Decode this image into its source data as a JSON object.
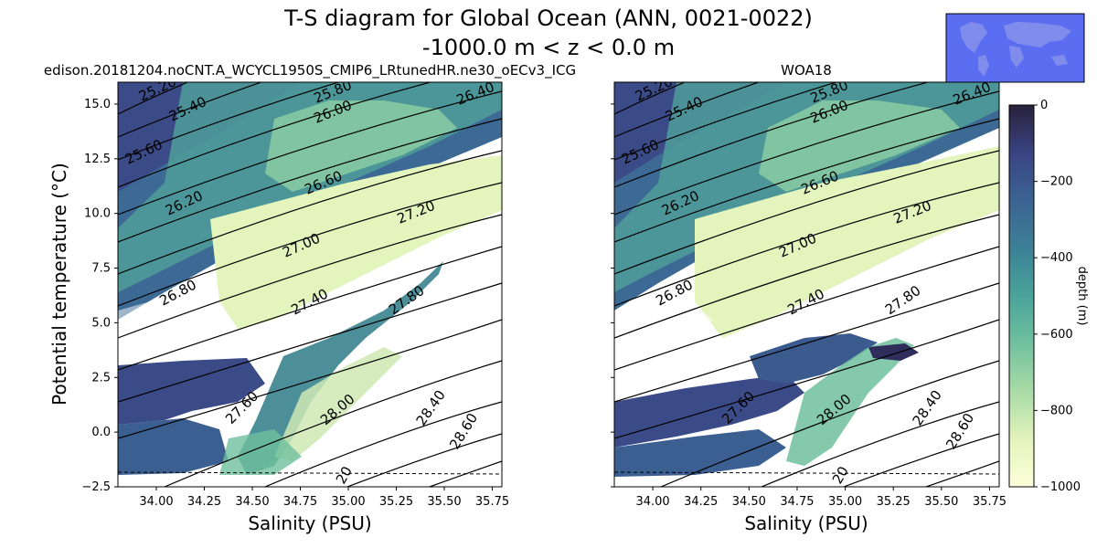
{
  "title_line1": "T-S diagram for Global Ocean (ANN, 0021-0022)",
  "title_line2": "-1000.0 m < z < 0.0 m",
  "colorbar": {
    "label": "depth (m)",
    "ticks": [
      "0",
      "−200",
      "−400",
      "−600",
      "−800",
      "−1000"
    ],
    "range": [
      -1000,
      0
    ],
    "colors": [
      "#fdfed9",
      "#cfe9b4",
      "#8fcfa2",
      "#58b09b",
      "#3d8c98",
      "#3a6893",
      "#3b4a87",
      "#2f2d5c",
      "#28213a"
    ]
  },
  "chart_data": [
    {
      "type": "scatter",
      "title": "edison.20181204.noCNT.A_WCYCL1950S_CMIP6_LRtunedHR.ne30_oECv3_ICG",
      "xlabel": "Salinity (PSU)",
      "ylabel": "Potential temperature (°C)",
      "xlim": [
        33.8,
        35.8
      ],
      "ylim": [
        -2.5,
        16.0
      ],
      "xticks": [
        "34.00",
        "34.25",
        "34.50",
        "34.75",
        "35.00",
        "35.25",
        "35.50",
        "35.75"
      ],
      "yticks": [
        "−2.5",
        "0.0",
        "2.5",
        "5.0",
        "7.5",
        "10.0",
        "12.5",
        "15.0"
      ],
      "density_contour_labels": [
        "25.20",
        "25.40",
        "25.60",
        "25.80",
        "26.00",
        "26.20",
        "26.40",
        "26.60",
        "26.80",
        "27.00",
        "27.20",
        "27.40",
        "27.60",
        "27.80",
        "28.00",
        "28.40",
        "28.60",
        "20"
      ],
      "freezing_line": "dashed"
    },
    {
      "type": "scatter",
      "title": "WOA18",
      "xlabel": "Salinity (PSU)",
      "ylabel": "",
      "xlim": [
        33.8,
        35.8
      ],
      "ylim": [
        -2.5,
        16.0
      ],
      "xticks": [
        "34.00",
        "34.25",
        "34.50",
        "34.75",
        "35.00",
        "35.25",
        "35.50",
        "35.75"
      ],
      "yticks": [],
      "density_contour_labels": [
        "25.20",
        "25.40",
        "25.60",
        "25.80",
        "26.00",
        "26.20",
        "26.40",
        "26.60",
        "26.80",
        "27.00",
        "27.20",
        "27.40",
        "27.60",
        "27.80",
        "28.00",
        "28.40",
        "28.60",
        "20"
      ],
      "freezing_line": "dashed"
    }
  ]
}
